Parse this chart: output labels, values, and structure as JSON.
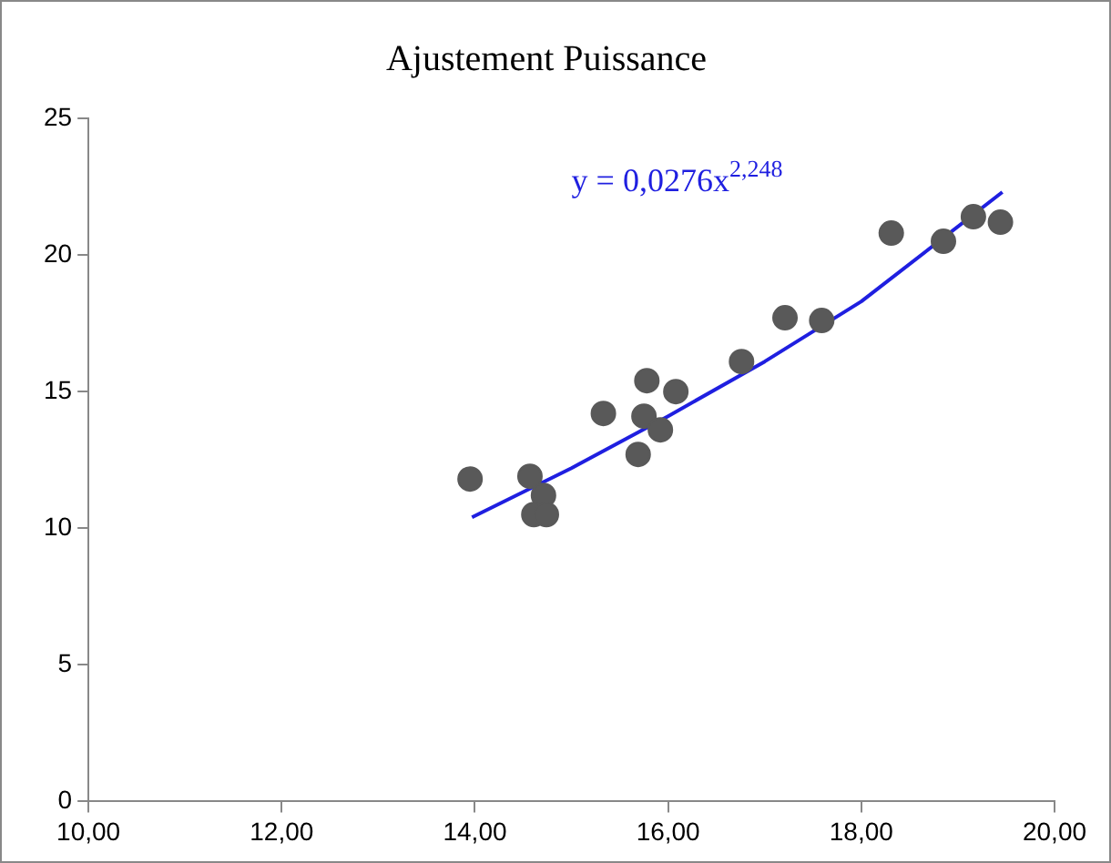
{
  "chart_data": {
    "type": "scatter",
    "title": "Ajustement Puissance",
    "xlim": [
      10,
      20
    ],
    "xticks": [
      {
        "value": 10,
        "label": "10,00"
      },
      {
        "value": 12,
        "label": "12,00"
      },
      {
        "value": 14,
        "label": "14,00"
      },
      {
        "value": 16,
        "label": "16,00"
      },
      {
        "value": 18,
        "label": "18,00"
      },
      {
        "value": 20,
        "label": "20,00"
      }
    ],
    "ylim": [
      0,
      25
    ],
    "yticks": [
      0,
      5,
      10,
      15,
      20,
      25
    ],
    "grid": false,
    "legend": false,
    "marker": "circle",
    "annotations": [
      "y = 0,0276x$^{2,248}$"
    ],
    "series": [
      {
        "color": "#595959",
        "x": [
          13.95,
          14.57,
          14.71,
          14.61,
          14.74,
          15.33,
          15.69,
          15.78,
          15.75,
          16.08,
          15.92,
          16.76,
          17.21,
          17.59,
          18.31,
          18.85,
          19.16,
          19.44
        ],
        "values": [
          11.8,
          11.9,
          11.2,
          10.5,
          10.5,
          14.2,
          12.7,
          15.4,
          14.1,
          15.0,
          13.6,
          16.1,
          17.7,
          17.6,
          20.8,
          20.5,
          21.4,
          21.2
        ]
      },
      {
        "type": "line",
        "color": "#1f1fe0",
        "marker": "none",
        "x": [
          13.97,
          15,
          16,
          17,
          18,
          19.46
        ],
        "values": [
          10.4,
          12.2,
          14.1,
          16.1,
          18.3,
          22.3
        ]
      }
    ]
  }
}
